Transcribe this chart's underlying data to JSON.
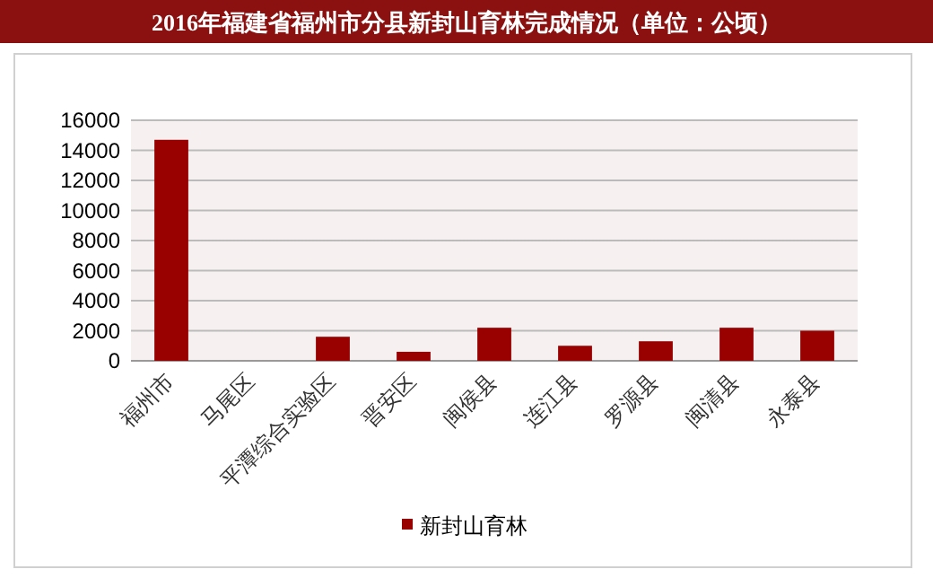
{
  "chart_data": {
    "type": "bar",
    "title": "2016年福建省福州市分县新封山育林完成情况（单位：公顷）",
    "categories": [
      "福州市",
      "马尾区",
      "平潭综合实验区",
      "晋安区",
      "闽侯县",
      "连江县",
      "罗源县",
      "闽清县",
      "永泰县"
    ],
    "series": [
      {
        "name": "新封山育林",
        "color": "#990000",
        "values": [
          14700,
          0,
          1600,
          600,
          2200,
          1000,
          1300,
          2200,
          2000
        ]
      }
    ],
    "ylim": [
      0,
      16000
    ],
    "yticks": [
      0,
      2000,
      4000,
      6000,
      8000,
      10000,
      12000,
      14000,
      16000
    ],
    "grid": "y",
    "legend": "bottom"
  }
}
